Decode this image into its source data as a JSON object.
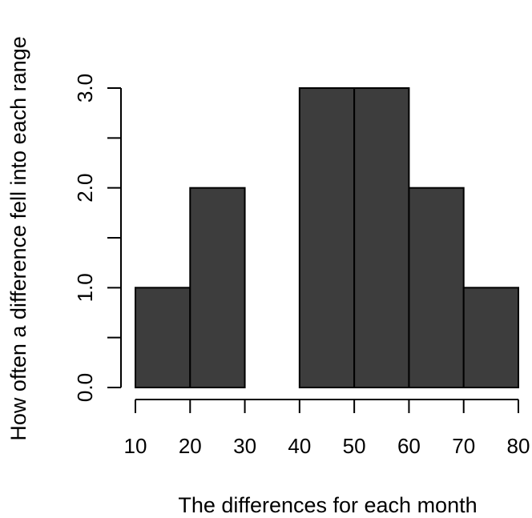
{
  "chart_data": {
    "type": "bar",
    "subtype": "histogram",
    "bins": [
      {
        "start": 10,
        "end": 20,
        "count": 1
      },
      {
        "start": 20,
        "end": 30,
        "count": 2
      },
      {
        "start": 30,
        "end": 40,
        "count": 0
      },
      {
        "start": 40,
        "end": 50,
        "count": 3
      },
      {
        "start": 50,
        "end": 60,
        "count": 3
      },
      {
        "start": 60,
        "end": 70,
        "count": 2
      },
      {
        "start": 70,
        "end": 80,
        "count": 1
      }
    ],
    "title": "",
    "xlabel": "The differences for each month",
    "ylabel": "How often a difference fell into each range",
    "xlim": [
      10,
      80
    ],
    "ylim": [
      0,
      3
    ],
    "x_ticks": [
      "10",
      "20",
      "30",
      "40",
      "50",
      "60",
      "70",
      "80"
    ],
    "y_ticks": [
      "0.0",
      "1.0",
      "2.0",
      "3.0"
    ],
    "y_minor_ticks": [
      0.5,
      1.5,
      2.5
    ],
    "grid": false,
    "colors": {
      "bar_fill": "#3d3d3d",
      "bar_stroke": "#000000"
    }
  }
}
